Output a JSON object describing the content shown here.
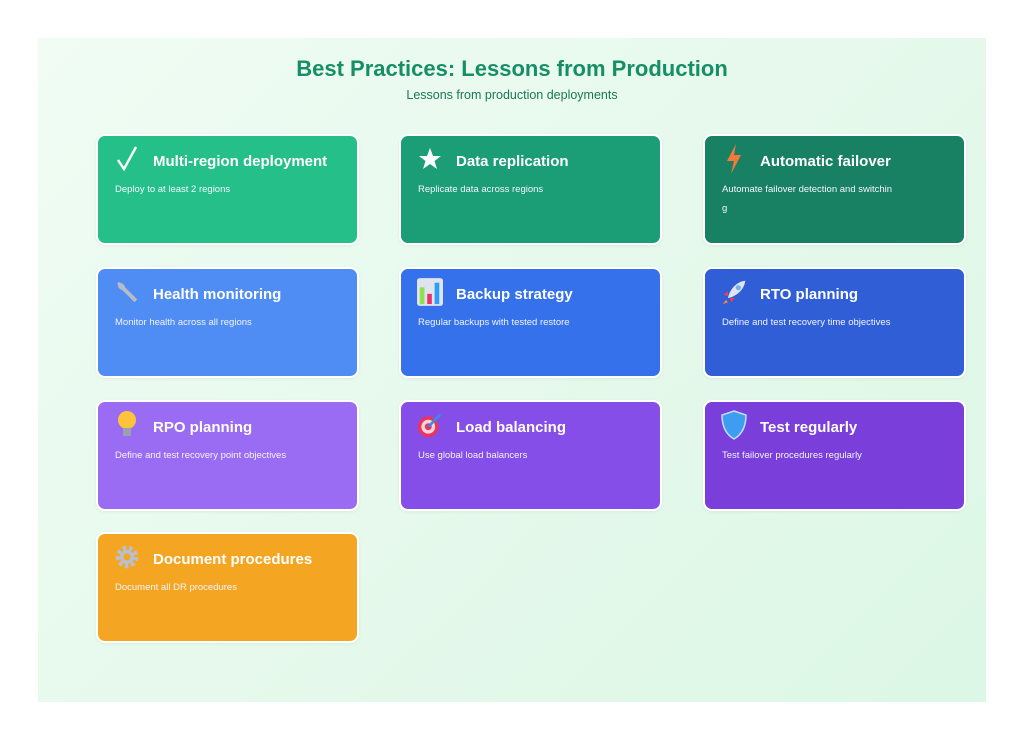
{
  "header": {
    "title": "Best Practices: Lessons from Production",
    "subtitle": "Lessons from production deployments"
  },
  "cards": [
    {
      "icon": "checkmark-icon",
      "title": "Multi-region deployment",
      "description": "Deploy to at least 2 regions",
      "color": "#25c08a"
    },
    {
      "icon": "star-icon",
      "title": "Data replication",
      "description": "Replicate data across regions",
      "color": "#1b9e75"
    },
    {
      "icon": "lightning-icon",
      "title": "Automatic failover",
      "description": "Automate failover detection and switching",
      "color": "#198163"
    },
    {
      "icon": "wrench-icon",
      "title": "Health monitoring",
      "description": "Monitor health across all regions",
      "color": "#4f8cf3"
    },
    {
      "icon": "bar-chart-icon",
      "title": "Backup strategy",
      "description": "Regular backups with tested restore",
      "color": "#3571ea"
    },
    {
      "icon": "rocket-icon",
      "title": "RTO planning",
      "description": "Define and test recovery time objectives",
      "color": "#2f5ed6"
    },
    {
      "icon": "lightbulb-icon",
      "title": "RPO planning",
      "description": "Define and test recovery point objectives",
      "color": "#9a6cf3"
    },
    {
      "icon": "target-icon",
      "title": "Load balancing",
      "description": "Use global load balancers",
      "color": "#864ee9"
    },
    {
      "icon": "shield-icon",
      "title": "Test regularly",
      "description": "Test failover procedures regularly",
      "color": "#7a3edb"
    },
    {
      "icon": "gear-icon",
      "title": "Document procedures",
      "description": "Document all DR procedures",
      "color": "#f4a622"
    }
  ]
}
